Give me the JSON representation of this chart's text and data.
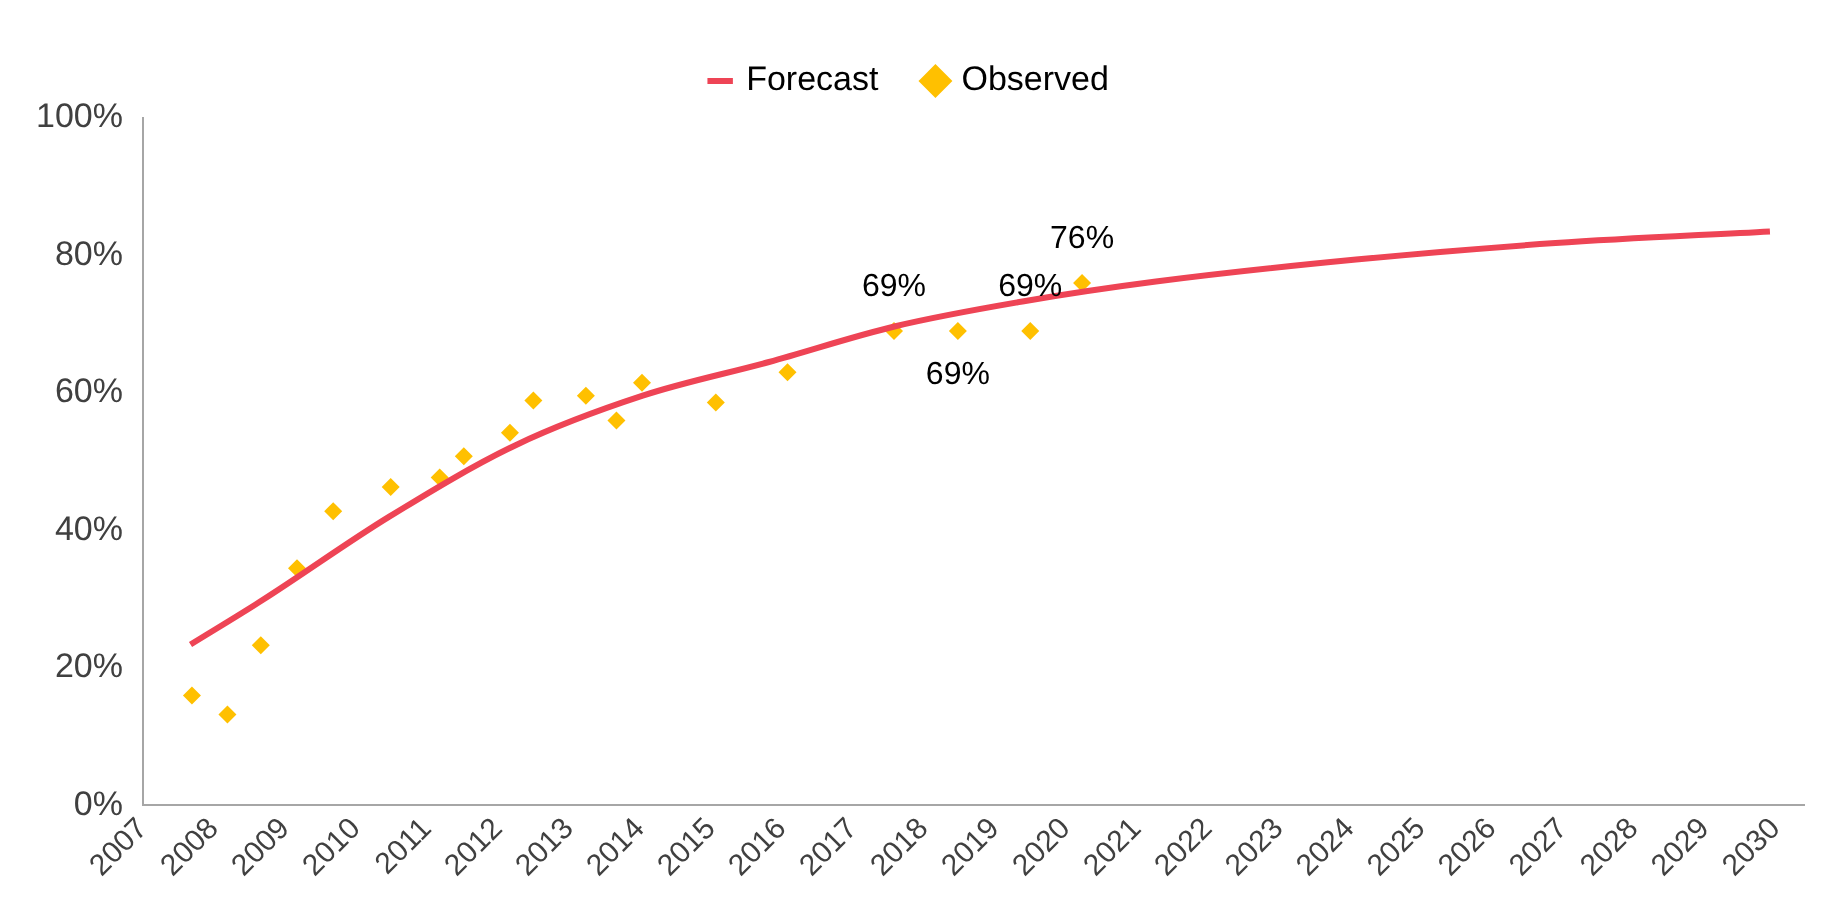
{
  "chart_data": {
    "type": "line",
    "xlim": [
      2007,
      2030.4
    ],
    "xticks": [
      2007,
      2008,
      2009,
      2010,
      2011,
      2012,
      2013,
      2014,
      2015,
      2016,
      2017,
      2018,
      2019,
      2020,
      2021,
      2022,
      2023,
      2024,
      2025,
      2026,
      2027,
      2028,
      2029,
      2030
    ],
    "ylim": [
      0,
      100
    ],
    "yticks": [
      {
        "value": 0,
        "label": "0%"
      },
      {
        "value": 20,
        "label": "20%"
      },
      {
        "value": 40,
        "label": "40%"
      },
      {
        "value": 60,
        "label": "60%"
      },
      {
        "value": 80,
        "label": "80%"
      },
      {
        "value": 100,
        "label": "100%"
      }
    ],
    "grid": false,
    "legend": "top",
    "series": [
      {
        "name": "Forecast",
        "color": "#ee4455",
        "marker": "none",
        "line_style": "solid",
        "x": [
          2007.67,
          2008.69,
          2010.47,
          2012.25,
          2014.04,
          2015.82,
          2017.6,
          2019.39,
          2021.27,
          2024.09,
          2026.9,
          2029.92
        ],
        "values": [
          23.4,
          29.9,
          42.0,
          52.4,
          59.6,
          64.5,
          69.7,
          73.3,
          76.2,
          79.4,
          81.8,
          83.5
        ]
      },
      {
        "name": "Observed",
        "type": "scatter",
        "color": "#ffc000",
        "marker": "diamond",
        "x": [
          2007.69,
          2008.19,
          2008.66,
          2009.17,
          2009.68,
          2010.49,
          2011.18,
          2011.52,
          2012.17,
          2012.5,
          2013.24,
          2013.67,
          2014.03,
          2015.07,
          2016.08,
          2017.58,
          2018.48,
          2019.5,
          2020.23
        ],
        "values": [
          16.0,
          13.2,
          23.3,
          34.5,
          42.8,
          46.3,
          47.7,
          50.8,
          54.2,
          58.9,
          59.6,
          56.0,
          61.5,
          58.6,
          63.0,
          69,
          69,
          69,
          76
        ],
        "value_labels": [
          null,
          null,
          null,
          null,
          null,
          null,
          null,
          null,
          null,
          null,
          null,
          null,
          null,
          null,
          null,
          "69%",
          "69%",
          "69%",
          "76%"
        ]
      }
    ]
  }
}
